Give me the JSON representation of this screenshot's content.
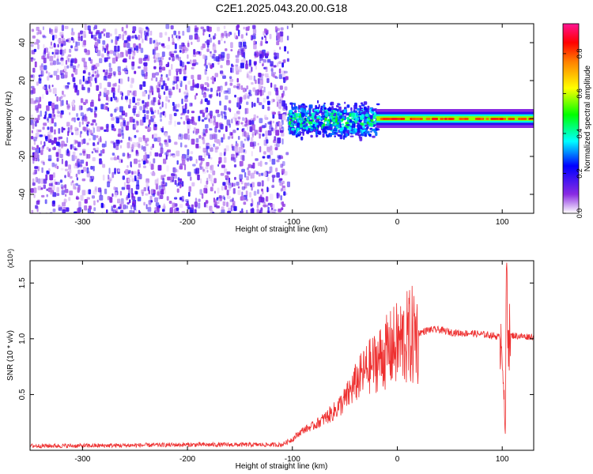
{
  "figure": {
    "title": "C2E1.2025.043.20.00.G18"
  },
  "chart_data": [
    {
      "type": "heatmap",
      "title": "C2E1.2025.043.20.00.G18",
      "xlabel": "Height of straight line (km)",
      "ylabel": "Frequency (Hz)",
      "xlim": [
        -350,
        130
      ],
      "ylim": [
        -50,
        50
      ],
      "xticks": [
        -300,
        -200,
        -100,
        0,
        100
      ],
      "yticks": [
        -40,
        -20,
        0,
        20,
        40
      ],
      "grid": false,
      "colorbar": {
        "label": "Normalized spectral amplitude",
        "range": [
          0,
          0.95
        ],
        "ticks": [
          "0.0",
          "0.2",
          "0.4",
          "0.6",
          "0.8"
        ],
        "colormap": [
          "#ffffff",
          "#8a2be2",
          "#0000ff",
          "#00ffff",
          "#00ff00",
          "#ffff00",
          "#ff8000",
          "#ff0000",
          "#ff1493"
        ]
      },
      "regions": [
        {
          "x_range": [
            -350,
            -105
          ],
          "freq_range": [
            -50,
            50
          ],
          "amplitude": 0.1,
          "description": "broadband noise"
        },
        {
          "x_range": [
            -105,
            -20
          ],
          "freq_range": [
            -10,
            10
          ],
          "amplitude": 0.4
        },
        {
          "x_range": [
            -20,
            130
          ],
          "freq_range": [
            -2,
            2
          ],
          "amplitude": 0.7
        }
      ]
    },
    {
      "type": "line",
      "xlabel": "Height of straight line (km)",
      "ylabel": "SNR (10 * v/v)",
      "y_multiplier": "(x10⁴)",
      "xlim": [
        -350,
        130
      ],
      "ylim": [
        0,
        1.7
      ],
      "xticks": [
        -300,
        -200,
        -100,
        0,
        100
      ],
      "yticks": [
        "0.5",
        "1.0",
        "1.5"
      ],
      "grid": false,
      "series": [
        {
          "color": "#ee3030",
          "points": [
            [
              -350,
              0.04
            ],
            [
              -300,
              0.04
            ],
            [
              -250,
              0.045
            ],
            [
              -200,
              0.05
            ],
            [
              -150,
              0.05
            ],
            [
              -110,
              0.05
            ],
            [
              -100,
              0.1
            ],
            [
              -90,
              0.18
            ],
            [
              -80,
              0.22
            ],
            [
              -70,
              0.28
            ],
            [
              -60,
              0.35
            ],
            [
              -50,
              0.45
            ],
            [
              -40,
              0.6
            ],
            [
              -30,
              0.72
            ],
            [
              -20,
              0.8
            ],
            [
              -10,
              0.88
            ],
            [
              0,
              0.95
            ],
            [
              10,
              1.0
            ],
            [
              20,
              1.05
            ],
            [
              30,
              1.08
            ],
            [
              40,
              1.08
            ],
            [
              50,
              1.06
            ],
            [
              60,
              1.05
            ],
            [
              70,
              1.05
            ],
            [
              80,
              1.04
            ],
            [
              90,
              1.03
            ],
            [
              95,
              1.02
            ],
            [
              100,
              1.01
            ],
            [
              103,
              0.07
            ],
            [
              104,
              1.7
            ],
            [
              106,
              1.02
            ],
            [
              110,
              1.03
            ],
            [
              120,
              1.02
            ],
            [
              130,
              1.02
            ]
          ]
        }
      ]
    }
  ]
}
